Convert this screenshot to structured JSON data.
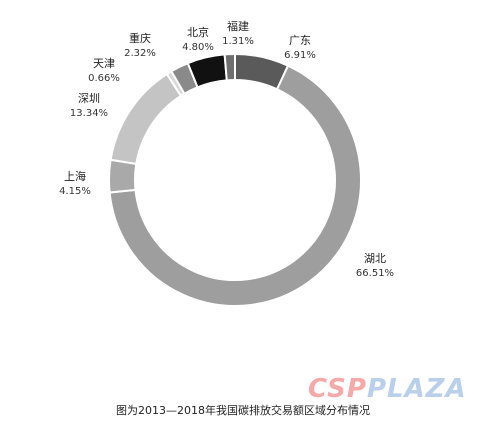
{
  "caption": "图为2013—2018年我国碳排放交易额区域分布情况",
  "watermark": {
    "part_a": "CSP",
    "part_b": "PLAZA"
  },
  "chart_data": {
    "type": "pie",
    "variant": "donut",
    "title": "",
    "slices": [
      {
        "label": "广东",
        "pct_text": "6.91%",
        "value": 6.91,
        "color": "#5a5a5a"
      },
      {
        "label": "湖北",
        "pct_text": "66.51%",
        "value": 66.51,
        "color": "#9e9e9e"
      },
      {
        "label": "上海",
        "pct_text": "4.15%",
        "value": 4.15,
        "color": "#a9a9a9"
      },
      {
        "label": "深圳",
        "pct_text": "13.34%",
        "value": 13.34,
        "color": "#c4c4c4"
      },
      {
        "label": "天津",
        "pct_text": "0.66%",
        "value": 0.66,
        "color": "#d9d9d9"
      },
      {
        "label": "重庆",
        "pct_text": "2.32%",
        "value": 2.32,
        "color": "#8a8a8a"
      },
      {
        "label": "北京",
        "pct_text": "4.80%",
        "value": 4.8,
        "color": "#111111"
      },
      {
        "label": "福建",
        "pct_text": "1.31%",
        "value": 1.31,
        "color": "#6e6e6e"
      }
    ]
  }
}
